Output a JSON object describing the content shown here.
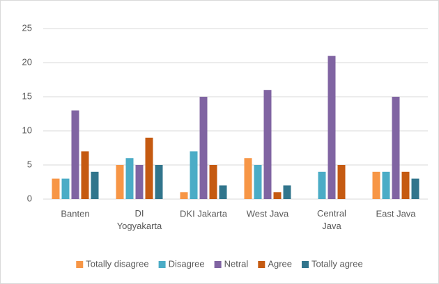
{
  "chart_data": {
    "type": "bar",
    "categories": [
      "Banten",
      "DI Yogyakarta",
      "DKI Jakarta",
      "West Java",
      "Central Java",
      "East Java"
    ],
    "series": [
      {
        "name": "Totally disagree",
        "color": "#f79646",
        "values": [
          3,
          5,
          1,
          6,
          0,
          4
        ]
      },
      {
        "name": "Disagree",
        "color": "#4bacc6",
        "values": [
          3,
          6,
          7,
          5,
          4,
          4
        ]
      },
      {
        "name": "Netral",
        "color": "#8064a2",
        "values": [
          13,
          5,
          15,
          16,
          21,
          15
        ]
      },
      {
        "name": "Agree",
        "color": "#c55a11",
        "values": [
          7,
          9,
          5,
          1,
          5,
          4
        ]
      },
      {
        "name": "Totally agree",
        "color": "#31758c",
        "values": [
          4,
          5,
          2,
          2,
          0,
          3
        ]
      }
    ],
    "ylim": [
      0,
      25
    ],
    "yticks": [
      0,
      5,
      10,
      15,
      20,
      25
    ],
    "grid": true,
    "legend": "bottom"
  }
}
